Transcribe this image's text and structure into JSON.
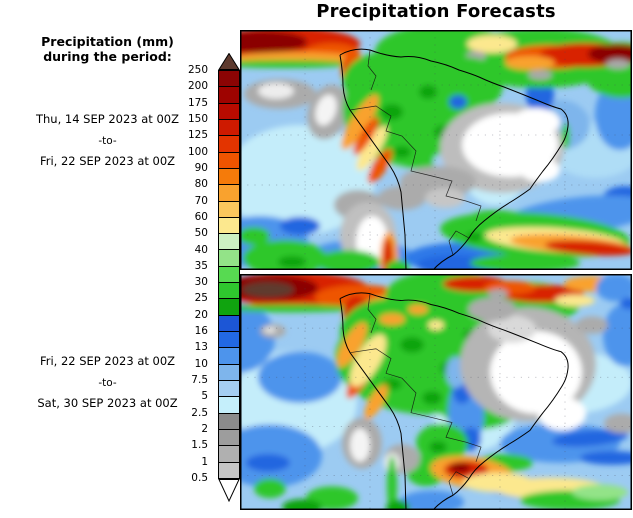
{
  "title": "Precipitation Forecasts",
  "sidebar": {
    "heading_line1": "Precipitation (mm)",
    "heading_line2": "during the period:",
    "period1": {
      "from": "Thu, 14 SEP 2023 at 00Z",
      "separator": "-to-",
      "to": "Fri, 22 SEP 2023 at 00Z"
    },
    "period2": {
      "from": "Fri, 22 SEP 2023 at 00Z",
      "separator": "-to-",
      "to": "Sat, 30 SEP 2023 at 00Z"
    }
  },
  "colorbar": {
    "unit": "mm",
    "tick_labels": [
      "250",
      "200",
      "175",
      "150",
      "125",
      "100",
      "90",
      "80",
      "70",
      "60",
      "50",
      "40",
      "35",
      "30",
      "25",
      "20",
      "16",
      "13",
      "10",
      "7.5",
      "5",
      "2.5",
      "2",
      "1.5",
      "1",
      "0.5"
    ],
    "segment_colors": [
      "#8B0404",
      "#9E0300",
      "#B80B00",
      "#CE1A00",
      "#E33400",
      "#EE5400",
      "#F57B0A",
      "#F9A22E",
      "#FBC75D",
      "#FCE88E",
      "#CDF0C2",
      "#93E388",
      "#57DA51",
      "#2FC72E",
      "#10A40F",
      "#1C56D6",
      "#2268E3",
      "#4D94EC",
      "#7EB5EC",
      "#A5CEF2",
      "#C5EFFB",
      "#8B8B8B",
      "#9D9D9D",
      "#B0B0B0",
      "#C5C5C5"
    ],
    "overflow_color": "#5E3A2E",
    "underflow_color": "#FFFFFF"
  },
  "maps": {
    "region": "South America",
    "top_period": "Thu, 14 SEP 2023 00Z to Fri, 22 SEP 2023 00Z",
    "bottom_period": "Fri, 22 SEP 2023 00Z to Sat, 30 SEP 2023 00Z"
  }
}
